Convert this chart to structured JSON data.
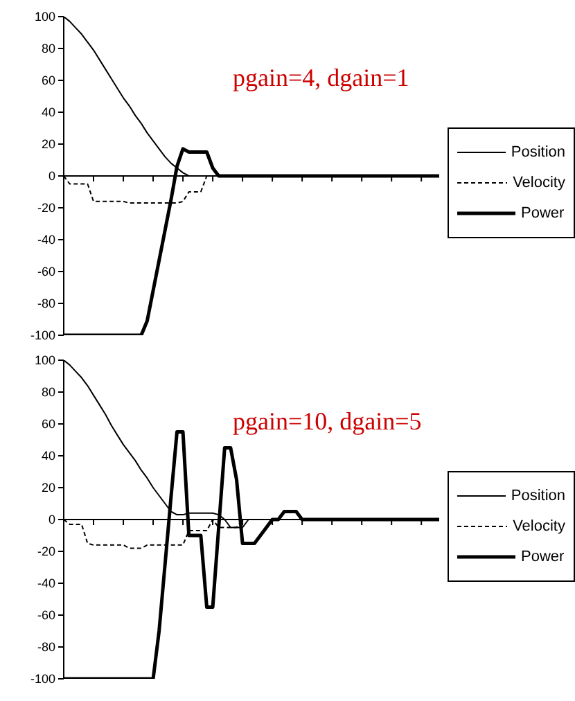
{
  "chart_data": [
    {
      "type": "line",
      "title": "pgain=4, dgain=1",
      "categories": [
        null,
        null,
        null,
        null,
        null,
        null,
        null,
        null,
        null,
        null,
        null,
        null,
        null,
        null,
        null,
        null,
        null,
        null,
        null,
        null,
        null,
        null,
        null,
        null,
        null,
        null,
        null,
        null,
        null,
        null,
        null,
        null,
        null,
        null,
        null,
        null,
        null,
        null,
        null,
        null,
        null,
        null,
        null,
        null,
        null,
        null,
        null,
        null,
        null,
        null,
        null,
        null,
        null,
        null,
        null,
        null,
        null,
        null,
        null,
        null,
        null,
        null,
        null,
        null
      ],
      "ylim": [
        -100,
        100
      ],
      "yticks": [
        -100,
        -80,
        -60,
        -40,
        -20,
        0,
        20,
        40,
        60,
        80,
        100
      ],
      "tick_labels": "y",
      "legend": "right",
      "marker": "none",
      "series": [
        {
          "name": "Position",
          "color": "#000000",
          "line_style": "solid",
          "values": [
            100,
            97,
            93,
            89,
            84,
            79,
            73,
            67,
            61,
            55,
            49,
            44,
            38,
            33,
            27,
            22,
            17,
            12,
            8,
            5,
            2,
            0,
            0,
            0,
            0,
            0,
            0,
            0,
            0,
            0,
            0,
            0,
            0,
            0,
            0,
            0,
            0,
            0,
            0,
            0,
            0,
            0,
            0,
            0,
            0,
            0,
            0,
            0,
            0,
            0,
            0,
            0,
            0,
            0,
            0,
            0,
            0,
            0,
            0,
            0,
            0,
            0,
            0,
            0
          ]
        },
        {
          "name": "Velocity",
          "color": "#000000",
          "line_style": "dashed",
          "values": [
            0,
            -5,
            -5,
            -5,
            -5,
            -16,
            -16,
            -16,
            -16,
            -16,
            -16,
            -17,
            -17,
            -17,
            -17,
            -17,
            -17,
            -17,
            -17,
            -17,
            -16,
            -10,
            -10,
            -10,
            0,
            0,
            0,
            0,
            0,
            0,
            0,
            0,
            0,
            0,
            0,
            0,
            0,
            0,
            0,
            0,
            0,
            0,
            0,
            0,
            0,
            0,
            0,
            0,
            0,
            0,
            0,
            0,
            0,
            0,
            0,
            0,
            0,
            0,
            0,
            0,
            0,
            0,
            0,
            0
          ]
        },
        {
          "name": "Power",
          "color": "#000000",
          "line_style": "solid",
          "values": [
            -100,
            -100,
            -100,
            -100,
            -100,
            -100,
            -100,
            -100,
            -100,
            -100,
            -100,
            -100,
            -100,
            -100,
            -91,
            -72,
            -53,
            -34,
            -15,
            6,
            17,
            15,
            15,
            15,
            15,
            5,
            0,
            0,
            0,
            0,
            0,
            0,
            0,
            0,
            0,
            0,
            0,
            0,
            0,
            0,
            0,
            0,
            0,
            0,
            0,
            0,
            0,
            0,
            0,
            0,
            0,
            0,
            0,
            0,
            0,
            0,
            0,
            0,
            0,
            0,
            0,
            0,
            0,
            0
          ]
        }
      ]
    },
    {
      "type": "line",
      "title": "pgain=10, dgain=5",
      "categories": [
        null,
        null,
        null,
        null,
        null,
        null,
        null,
        null,
        null,
        null,
        null,
        null,
        null,
        null,
        null,
        null,
        null,
        null,
        null,
        null,
        null,
        null,
        null,
        null,
        null,
        null,
        null,
        null,
        null,
        null,
        null,
        null,
        null,
        null,
        null,
        null,
        null,
        null,
        null,
        null,
        null,
        null,
        null,
        null,
        null,
        null,
        null,
        null,
        null,
        null,
        null,
        null,
        null,
        null,
        null,
        null,
        null,
        null,
        null,
        null,
        null,
        null,
        null,
        null
      ],
      "ylim": [
        -100,
        100
      ],
      "yticks": [
        -100,
        -80,
        -60,
        -40,
        -20,
        0,
        20,
        40,
        60,
        80,
        100
      ],
      "tick_labels": "y",
      "legend": "right",
      "marker": "none",
      "series": [
        {
          "name": "Position",
          "color": "#000000",
          "line_style": "solid",
          "values": [
            100,
            97,
            93,
            89,
            84,
            78,
            72,
            66,
            59,
            53,
            47,
            42,
            37,
            31,
            26,
            20,
            15,
            10,
            5,
            3,
            3,
            4,
            4,
            4,
            4,
            4,
            3,
            0,
            -5,
            -5,
            -5,
            0,
            0,
            0,
            0,
            0,
            0,
            0,
            0,
            0,
            0,
            0,
            0,
            0,
            0,
            0,
            0,
            0,
            0,
            0,
            0,
            0,
            0,
            0,
            0,
            0,
            0,
            0,
            0,
            0,
            0,
            0,
            0,
            0
          ]
        },
        {
          "name": "Velocity",
          "color": "#000000",
          "line_style": "dashed",
          "values": [
            0,
            -3,
            -3,
            -3,
            -15,
            -16,
            -16,
            -16,
            -16,
            -16,
            -16,
            -18,
            -18,
            -18,
            -16,
            -16,
            -16,
            -16,
            -16,
            -16,
            -16,
            -7,
            -7,
            -7,
            -7,
            0,
            -5,
            -5,
            -5,
            -5,
            0,
            0,
            0,
            0,
            0,
            0,
            0,
            0,
            0,
            0,
            0,
            0,
            0,
            0,
            0,
            0,
            0,
            0,
            0,
            0,
            0,
            0,
            0,
            0,
            0,
            0,
            0,
            0,
            0,
            0,
            0,
            0,
            0,
            0
          ]
        },
        {
          "name": "Power",
          "color": "#000000",
          "line_style": "solid",
          "values": [
            -100,
            -100,
            -100,
            -100,
            -100,
            -100,
            -100,
            -100,
            -100,
            -100,
            -100,
            -100,
            -100,
            -100,
            -100,
            -100,
            -70,
            -28,
            14,
            55,
            55,
            -10,
            -10,
            -10,
            -55,
            -55,
            -5,
            45,
            45,
            25,
            -15,
            -15,
            -15,
            -10,
            -5,
            0,
            0,
            5,
            5,
            5,
            0,
            0,
            0,
            0,
            0,
            0,
            0,
            0,
            0,
            0,
            0,
            0,
            0,
            0,
            0,
            0,
            0,
            0,
            0,
            0,
            0,
            0,
            0,
            0
          ]
        }
      ]
    }
  ]
}
